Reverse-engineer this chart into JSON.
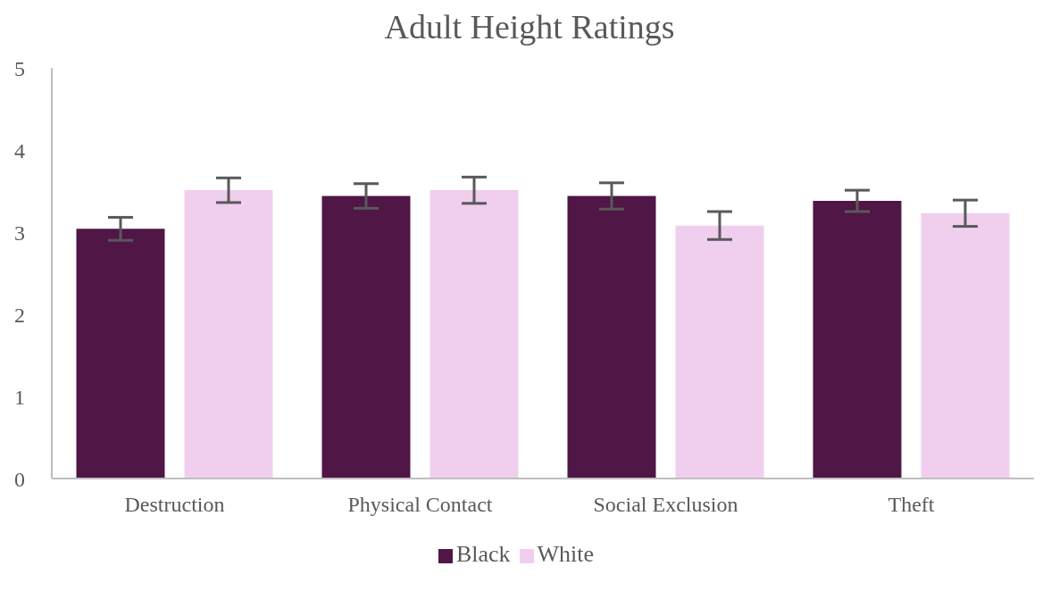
{
  "chart_data": {
    "type": "bar",
    "title": "Adult Height Ratings",
    "categories": [
      "Destruction",
      "Physical Contact",
      "Social Exclusion",
      "Theft"
    ],
    "series": [
      {
        "name": "Black",
        "color": "#4f1646",
        "values": [
          3.04,
          3.44,
          3.44,
          3.38
        ],
        "errors": [
          0.14,
          0.15,
          0.16,
          0.13
        ]
      },
      {
        "name": "White",
        "color": "#f0ceee",
        "values": [
          3.51,
          3.51,
          3.08,
          3.23
        ],
        "errors": [
          0.15,
          0.16,
          0.17,
          0.16
        ]
      }
    ],
    "ylim": [
      0,
      5
    ],
    "yticks": [
      0,
      1,
      2,
      3,
      4,
      5
    ],
    "grid": false,
    "legend": "bottom"
  }
}
